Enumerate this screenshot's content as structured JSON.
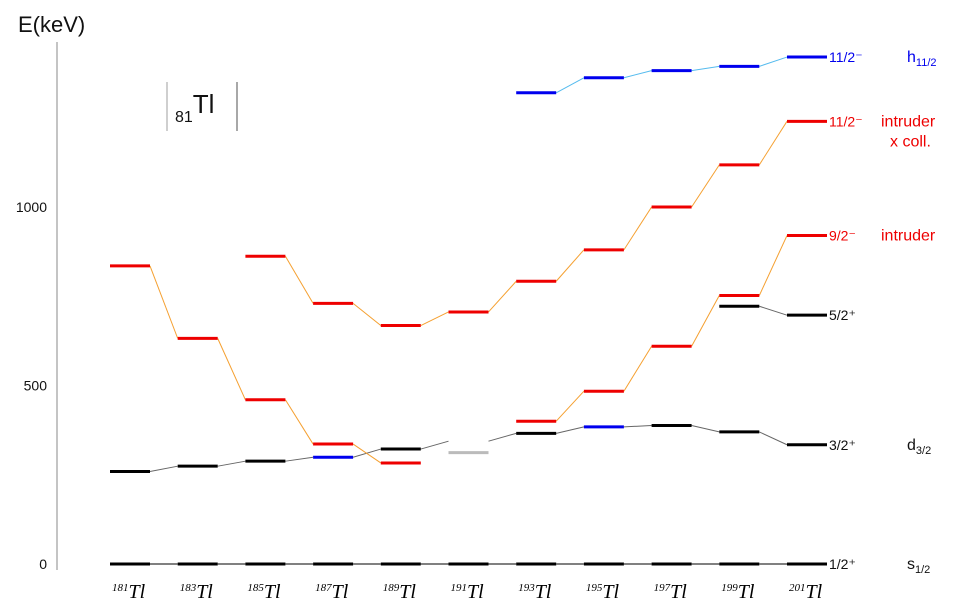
{
  "chart_data": {
    "type": "line",
    "ylabel": "E(keV)",
    "ylim": [
      0,
      1450
    ],
    "yticks": [
      0,
      500,
      1000
    ],
    "element": {
      "main": "Tl",
      "sub": "81"
    },
    "categories": [
      {
        "mass": "181",
        "el": "Tl"
      },
      {
        "mass": "183",
        "el": "Tl"
      },
      {
        "mass": "185",
        "el": "Tl"
      },
      {
        "mass": "187",
        "el": "Tl"
      },
      {
        "mass": "189",
        "el": "Tl"
      },
      {
        "mass": "191",
        "el": "Tl"
      },
      {
        "mass": "193",
        "el": "Tl"
      },
      {
        "mass": "195",
        "el": "Tl"
      },
      {
        "mass": "197",
        "el": "Tl"
      },
      {
        "mass": "199",
        "el": "Tl"
      },
      {
        "mass": "201",
        "el": "Tl"
      }
    ],
    "series": [
      {
        "key": "s12",
        "level_label": "1/2⁺",
        "orbital": {
          "base": "s",
          "sub": "1/2"
        },
        "color": "#000000",
        "line_color": "#000000",
        "values": [
          0,
          0,
          0,
          0,
          0,
          0,
          0,
          0,
          0,
          0,
          0
        ],
        "highlight": []
      },
      {
        "key": "d32",
        "level_label": "3/2⁺",
        "orbital": {
          "base": "d",
          "sub": "3/2"
        },
        "color": "#000000",
        "line_color": "#666666",
        "values": [
          259,
          274,
          288,
          299,
          322,
          344,
          366,
          384,
          388,
          370,
          334
        ],
        "highlight": [
          {
            "index": 3,
            "color": "#0000ee"
          },
          {
            "index": 7,
            "color": "#0000ee"
          },
          {
            "index": 5,
            "color": "#bbbbbb",
            "value": 312
          }
        ]
      },
      {
        "key": "f52",
        "level_label": "5/2⁺",
        "orbital": null,
        "color": "#000000",
        "line_color": "#666666",
        "values": [
          null,
          null,
          null,
          null,
          null,
          null,
          null,
          null,
          null,
          722,
          697
        ],
        "highlight": []
      },
      {
        "key": "i92",
        "level_label": "9/2⁻",
        "intruder_label": "intruder",
        "color": "#ee0000",
        "line_color": "#f5a030",
        "values": [
          835,
          632,
          460,
          336,
          283,
          null,
          400,
          484,
          610,
          752,
          920
        ],
        "highlight": []
      },
      {
        "key": "i112",
        "level_label": "11/2⁻",
        "intruder_label": "intruder",
        "intruder_label2": "x coll.",
        "color": "#ee0000",
        "line_color": "#f5a030",
        "values": [
          null,
          null,
          862,
          730,
          668,
          706,
          792,
          880,
          1000,
          1118,
          1240
        ],
        "highlight": []
      },
      {
        "key": "h112",
        "level_label": "11/2⁻",
        "orbital": {
          "base": "h",
          "sub": "11/2"
        },
        "color": "#0000ee",
        "line_color": "#55bbee",
        "values": [
          null,
          null,
          null,
          null,
          null,
          null,
          1320,
          1362,
          1382,
          1394,
          1420
        ],
        "highlight": []
      }
    ]
  }
}
